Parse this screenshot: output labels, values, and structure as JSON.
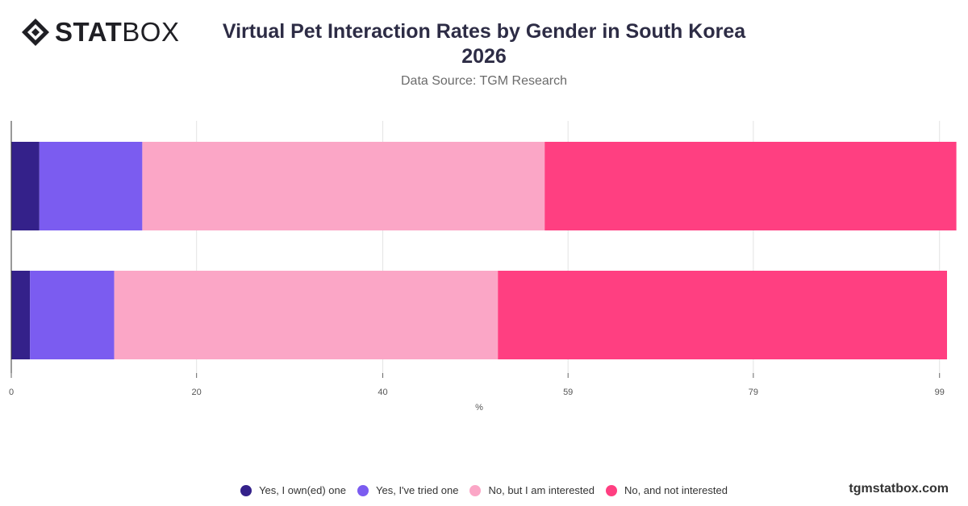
{
  "header": {
    "logo_bold": "STAT",
    "logo_light": "BOX",
    "logo_icon": "diamond-logo-icon",
    "title_line1": "Virtual Pet Interaction Rates by Gender in South Korea",
    "title_line2": "2026",
    "subtitle": "Data Source: TGM Research"
  },
  "footer": {
    "url": "tgmstatbox.com"
  },
  "chart_data": {
    "type": "bar",
    "orientation": "horizontal",
    "stacked": true,
    "categories": [
      "",
      ""
    ],
    "x_ticks": [
      "0",
      "20",
      "40",
      "59",
      "79",
      "99"
    ],
    "x_tick_values": [
      0,
      19.8,
      39.7,
      59.5,
      79.3,
      99.2
    ],
    "xlabel": "%",
    "xlim": [
      0,
      100
    ],
    "grid": true,
    "legend_position": "bottom",
    "series": [
      {
        "name": "Yes, I own(ed) one",
        "color": "#34218a",
        "values": [
          3,
          2
        ]
      },
      {
        "name": "Yes, I've tried one",
        "color": "#7b5cf0",
        "values": [
          11,
          9
        ]
      },
      {
        "name": "No, but I am interested",
        "color": "#fba6c6",
        "values": [
          43,
          41
        ]
      },
      {
        "name": "No, and not interested",
        "color": "#ff3f81",
        "values": [
          44,
          48
        ]
      }
    ]
  }
}
